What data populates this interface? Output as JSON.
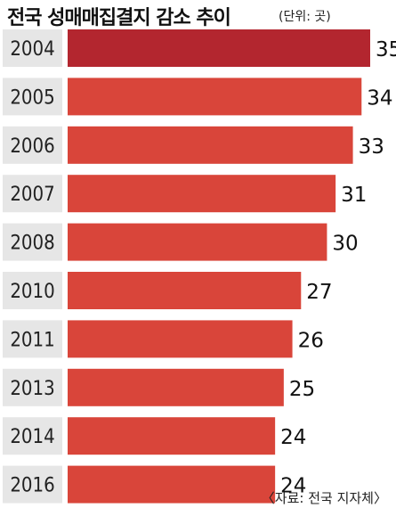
{
  "title": "전국 성매매집결지 감소 추이",
  "unit_label": "(단위: 곳)",
  "source": "〈자료: 전국 지자체〉",
  "colors": {
    "bar": "#d9453a",
    "bar_highlight": "#b3262f",
    "label_bg": "#e6e6e6"
  },
  "chart_data": {
    "type": "bar",
    "orientation": "horizontal",
    "title": "전국 성매매집결지 감소 추이",
    "unit": "곳",
    "categories": [
      "2004",
      "2005",
      "2006",
      "2007",
      "2008",
      "2010",
      "2011",
      "2013",
      "2014",
      "2016"
    ],
    "values": [
      35,
      34,
      33,
      31,
      30,
      27,
      26,
      25,
      24,
      24
    ],
    "xlim": [
      0,
      35
    ],
    "grid": false,
    "highlight_index": 0
  }
}
